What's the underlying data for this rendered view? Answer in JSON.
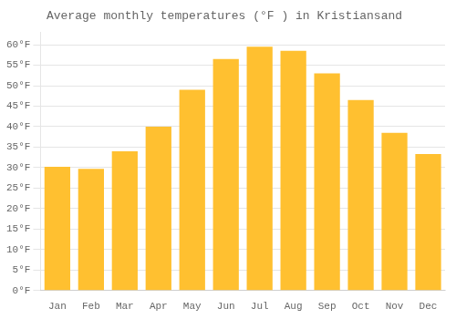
{
  "chart_data": {
    "type": "bar",
    "title": "Average monthly temperatures (°F ) in Kristiansand",
    "categories": [
      "Jan",
      "Feb",
      "Mar",
      "Apr",
      "May",
      "Jun",
      "Jul",
      "Aug",
      "Sep",
      "Oct",
      "Nov",
      "Dec"
    ],
    "values": [
      30.2,
      29.7,
      34.0,
      40.0,
      49.0,
      56.5,
      59.5,
      58.5,
      53.0,
      46.5,
      38.5,
      33.3
    ],
    "color": "#FFC030",
    "ylim": [
      0,
      63
    ],
    "yticks": [
      {
        "value": 0,
        "label": "0°F"
      },
      {
        "value": 5,
        "label": "5°F"
      },
      {
        "value": 10,
        "label": "10°F"
      },
      {
        "value": 15,
        "label": "15°F"
      },
      {
        "value": 20,
        "label": "20°F"
      },
      {
        "value": 25,
        "label": "25°F"
      },
      {
        "value": 30,
        "label": "30°F"
      },
      {
        "value": 35,
        "label": "35°F"
      },
      {
        "value": 40,
        "label": "40°F"
      },
      {
        "value": 45,
        "label": "45°F"
      },
      {
        "value": 50,
        "label": "50°F"
      },
      {
        "value": 55,
        "label": "55°F"
      },
      {
        "value": 60,
        "label": "60°F"
      }
    ],
    "grid": true
  }
}
